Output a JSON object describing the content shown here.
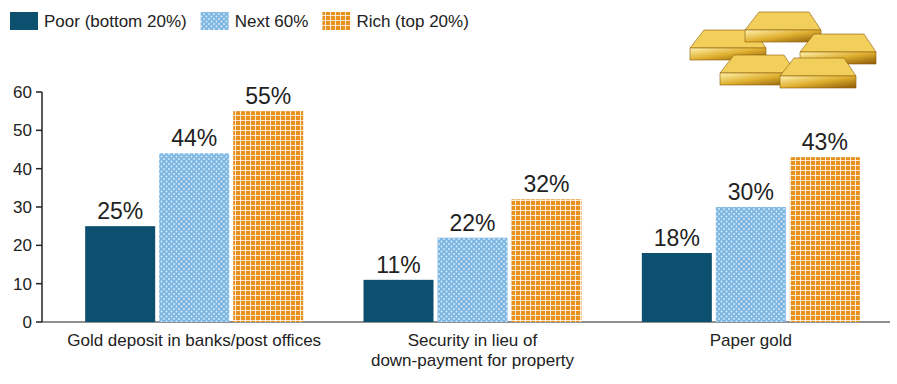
{
  "chart_data": {
    "type": "bar",
    "categories": [
      "Gold deposit in banks/post offices",
      "Security in lieu of down-payment for property",
      "Paper gold"
    ],
    "series": [
      {
        "name": "Poor (bottom 20%)",
        "color": "#0d4f6e",
        "values": [
          25,
          11,
          18
        ],
        "value_labels": [
          "25%",
          "11%",
          "18%"
        ]
      },
      {
        "name": "Next 60%",
        "color": "#7db7e2",
        "values": [
          44,
          22,
          30
        ],
        "value_labels": [
          "44%",
          "22%",
          "30%"
        ]
      },
      {
        "name": "Rich (top 20%)",
        "color": "#e8901e",
        "values": [
          55,
          32,
          43
        ],
        "value_labels": [
          "55%",
          "32%",
          "43%"
        ]
      }
    ],
    "ylim": [
      0,
      60
    ],
    "yticks": [
      0,
      10,
      20,
      30,
      40,
      50,
      60
    ],
    "legend": "top-left",
    "data_labels": true,
    "grid": false
  }
}
